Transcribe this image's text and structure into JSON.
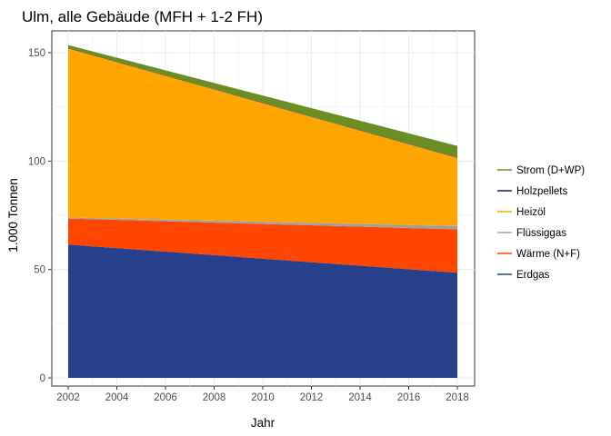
{
  "chart_data": {
    "type": "area",
    "stacked": true,
    "title": "Ulm, alle Gebäude (MFH + 1-2 FH)",
    "xlabel": "Jahr",
    "ylabel": "1.000 Tonnen",
    "xlim": [
      2002,
      2018
    ],
    "ylim": [
      0,
      160
    ],
    "x_ticks": [
      2002,
      2004,
      2006,
      2008,
      2010,
      2012,
      2014,
      2016,
      2018
    ],
    "y_ticks": [
      0,
      50,
      100,
      150
    ],
    "grid": true,
    "legend_position": "right",
    "x": [
      2002,
      2018
    ],
    "series": [
      {
        "name": "Erdgas",
        "color": "#27408b",
        "values": [
          61.5,
          48.5
        ]
      },
      {
        "name": "Wärme (N+F)",
        "color": "#ff4500",
        "values": [
          12.0,
          20.0
        ]
      },
      {
        "name": "Flüssiggas",
        "color": "#a0a0a0",
        "values": [
          0.5,
          1.5
        ]
      },
      {
        "name": "Heizöl",
        "color": "#ffa500",
        "values": [
          78.0,
          31.5
        ]
      },
      {
        "name": "Holzpellets",
        "color": "#191970",
        "values": [
          0.2,
          0.2
        ]
      },
      {
        "name": "Strom (D+WP)",
        "color": "#6b8e23",
        "values": [
          1.3,
          5.3
        ]
      }
    ],
    "legend_order": [
      "Strom (D+WP)",
      "Holzpellets",
      "Heizöl",
      "Flüssiggas",
      "Wärme (N+F)",
      "Erdgas"
    ]
  }
}
